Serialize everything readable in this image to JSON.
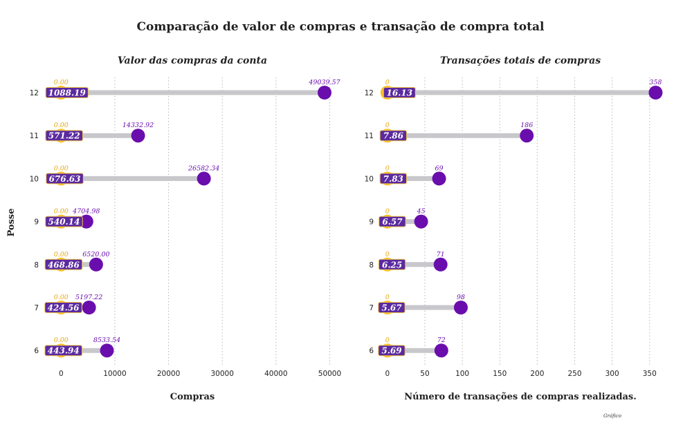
{
  "figure": {
    "suptitle": "Comparação de valor de compras e transação de compra total",
    "ylabel": "Posse",
    "footnote": "Gráfico"
  },
  "colors": {
    "min_point": "#fbbf24",
    "max_point": "#6a0dad",
    "min_label": "#e6a817",
    "max_label": "#6a0dad",
    "connector": "#c8c8cc",
    "box_fill": "#5b2aa0",
    "box_edge": "#f4c542",
    "grid": "#b4b4b4",
    "text": "#222222"
  },
  "chart_data": [
    {
      "type": "dumbbell",
      "title": "Valor das compras da conta",
      "xlabel": "Compras",
      "ylabel": "Posse",
      "categories": [
        "12",
        "11",
        "10",
        "9",
        "8",
        "7",
        "6"
      ],
      "min_values": [
        0.0,
        0.0,
        0.0,
        0.0,
        0.0,
        0.0,
        0.0
      ],
      "max_values": [
        49039.57,
        14332.92,
        26582.34,
        4704.98,
        6520.0,
        5197.22,
        8533.54
      ],
      "mean_values": [
        1088.19,
        571.22,
        676.63,
        540.14,
        468.86,
        424.56,
        443.94
      ],
      "min_labels": [
        "0.00",
        "0.00",
        "0.00",
        "0.00",
        "0.00",
        "0.00",
        "0.00"
      ],
      "max_labels": [
        "49039.57",
        "14332.92",
        "26582.34",
        "4704.98",
        "6520.00",
        "5197.22",
        "8533.54"
      ],
      "mean_labels": [
        "1088.19",
        "571.22",
        "676.63",
        "540.14",
        "468.86",
        "424.56",
        "443.94"
      ],
      "xticks": [
        0,
        10000,
        20000,
        30000,
        40000,
        50000
      ],
      "xtick_labels": [
        "0",
        "10000",
        "20000",
        "30000",
        "40000",
        "50000"
      ],
      "xlim": [
        -3000,
        52000
      ],
      "grid": "vertical dotted"
    },
    {
      "type": "dumbbell",
      "title": "Transações totais de compras",
      "xlabel": "Número de transações de compras realizadas.",
      "ylabel": "",
      "categories": [
        "12",
        "11",
        "10",
        "9",
        "8",
        "7",
        "6"
      ],
      "min_values": [
        0,
        0,
        0,
        0,
        0,
        0,
        0
      ],
      "max_values": [
        358,
        186,
        69,
        45,
        71,
        98,
        72
      ],
      "mean_values": [
        16.13,
        7.86,
        7.83,
        6.57,
        6.25,
        5.67,
        5.69
      ],
      "min_labels": [
        "0",
        "0",
        "0",
        "0",
        "0",
        "0",
        "0"
      ],
      "max_labels": [
        "358",
        "186",
        "69",
        "45",
        "71",
        "98",
        "72"
      ],
      "mean_labels": [
        "16.13",
        "7.86",
        "7.83",
        "6.57",
        "6.25",
        "5.67",
        "5.69"
      ],
      "xticks": [
        0,
        50,
        100,
        150,
        200,
        250,
        300,
        350
      ],
      "xtick_labels": [
        "0",
        "50",
        "100",
        "150",
        "200",
        "250",
        "300",
        "350"
      ],
      "xlim": [
        -10,
        365
      ],
      "grid": "vertical dotted"
    }
  ]
}
